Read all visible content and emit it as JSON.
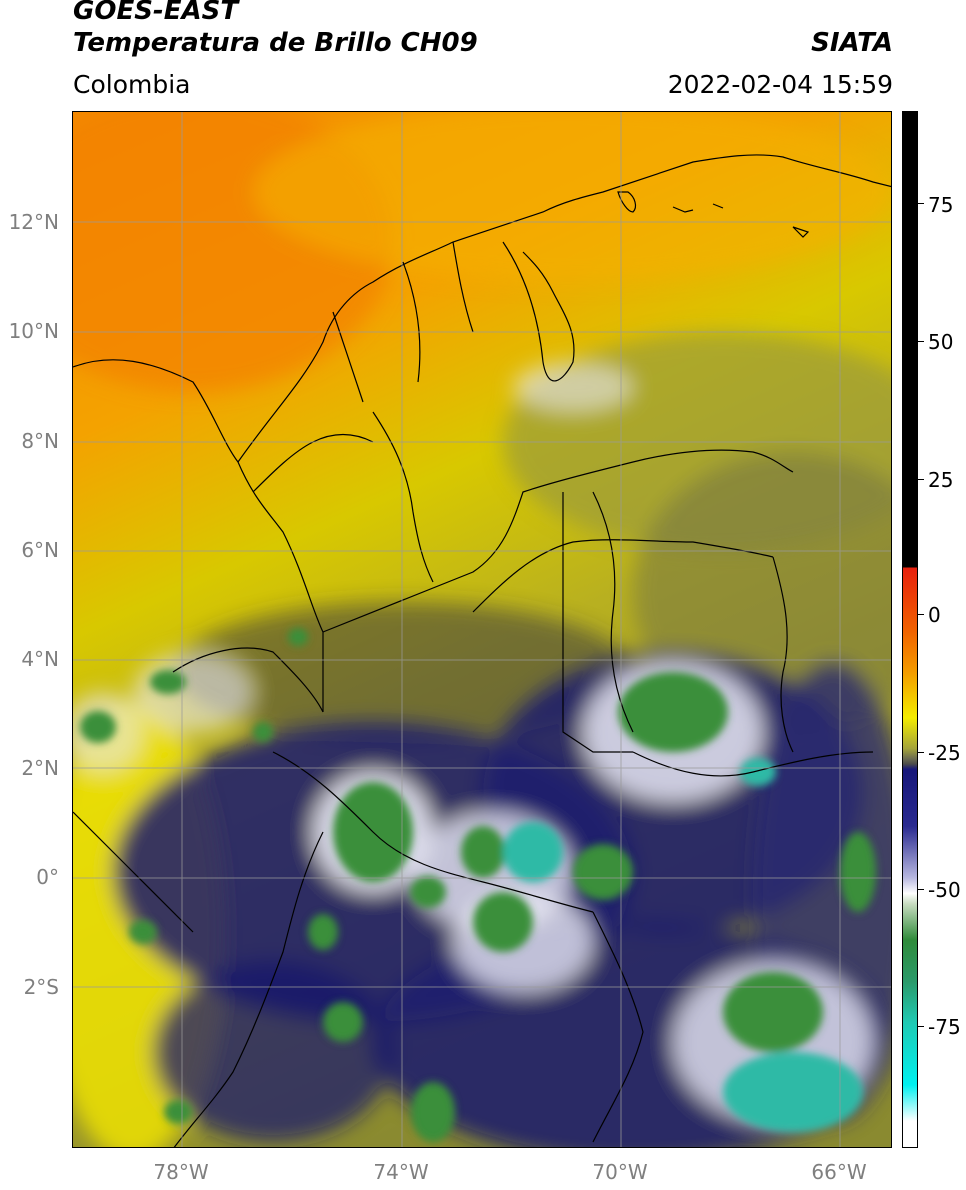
{
  "header": {
    "satellite": "GOES-EAST",
    "product": "Temperatura de Brillo CH09",
    "region": "Colombia",
    "brand": "SIATA",
    "datetime": "2022-02-04 15:59"
  },
  "map": {
    "lat_labels": [
      "12°N",
      "10°N",
      "8°N",
      "6°N",
      "4°N",
      "2°N",
      "0°",
      "2°S"
    ],
    "lon_labels": [
      "78°W",
      "74°W",
      "70°W",
      "66°W"
    ],
    "gridline_color": "#9a9a9a",
    "extent": {
      "lon_min": -79.9,
      "lon_max": -65.0,
      "lat_min": -5.0,
      "lat_max": 14.0
    }
  },
  "colorbar": {
    "labels": [
      "75",
      "50",
      "25",
      "0",
      "-25",
      "-50",
      "-75"
    ],
    "colors": {
      "above_10": "#000000",
      "red": "#e8200e",
      "orange": "#f49a00",
      "yellow": "#f4ec00",
      "olive": "#a4a43a",
      "gray": "#4a4a4a",
      "navy": "#17177a",
      "white": "#ffffff",
      "green": "#2f8b3a",
      "teal": "#1fcab4",
      "cyan": "#00f0f0"
    }
  }
}
